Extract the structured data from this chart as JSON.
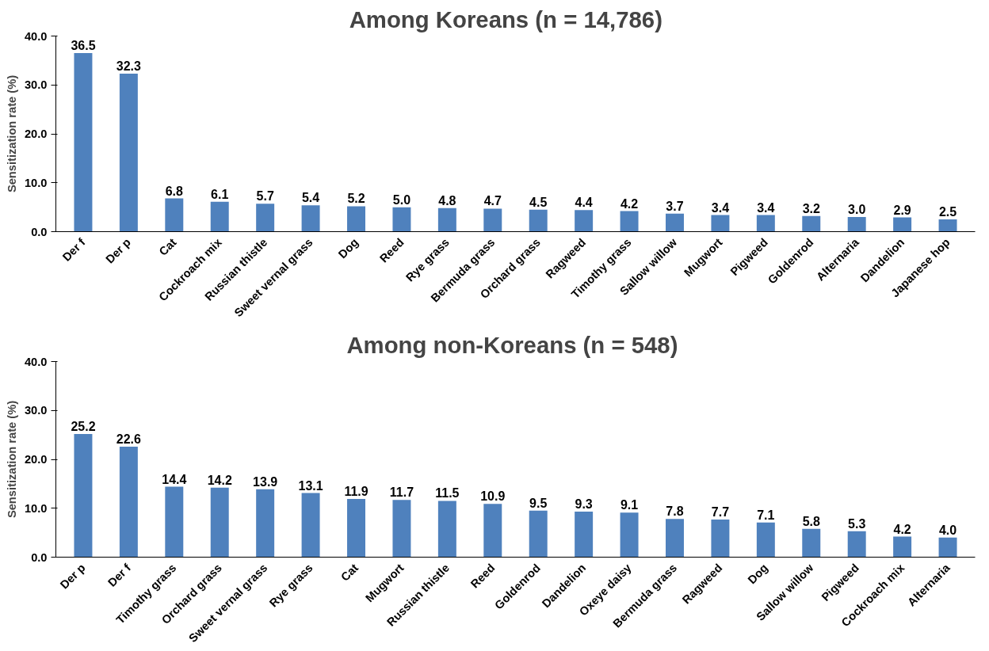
{
  "chart_data": [
    {
      "type": "bar",
      "title": "Among Koreans    (n = 14,786)",
      "ylabel": "Sensitization rate (%)",
      "categories": [
        "Der f",
        "Der p",
        "Cat",
        "Cockroach mix",
        "Russian thistle",
        "Sweet vernal grass",
        "Dog",
        "Reed",
        "Rye grass",
        "Bermuda grass",
        "Orchard grass",
        "Ragweed",
        "Timothy grass",
        "Sallow willow",
        "Mugwort",
        "Pigweed",
        "Goldenrod",
        "Alternaria",
        "Dandelion",
        "Japanese hop"
      ],
      "values": [
        36.5,
        32.3,
        6.8,
        6.1,
        5.7,
        5.4,
        5.2,
        5.0,
        4.8,
        4.7,
        4.5,
        4.4,
        4.2,
        3.7,
        3.4,
        3.4,
        3.2,
        3.0,
        2.9,
        2.5
      ],
      "value_labels": [
        "36.5",
        "32.3",
        "6.8",
        "6.1",
        "5.7",
        "5.4",
        "5.2",
        "5.0",
        "4.8",
        "4.7",
        "4.5",
        "4.4",
        "4.2",
        "3.7",
        "3.4",
        "3.4",
        "3.2",
        "3.0",
        "2.9",
        "2.5"
      ],
      "color": "#4f81bd",
      "ylim": [
        0,
        40
      ],
      "yticks": [
        {
          "value": 0,
          "label": "0.0"
        },
        {
          "value": 10,
          "label": "10.0"
        },
        {
          "value": 20,
          "label": "20.0"
        },
        {
          "value": 30,
          "label": "30.0"
        },
        {
          "value": 40,
          "label": "40.0"
        }
      ]
    },
    {
      "type": "bar",
      "title": "Among non-Koreans  (n = 548)",
      "ylabel": "Sensitization rate (%)",
      "categories": [
        "Der p",
        "Der f",
        "Timothy grass",
        "Orchard grass",
        "Sweet vernal grass",
        "Rye grass",
        "Cat",
        "Mugwort",
        "Russian thistle",
        "Reed",
        "Goldenrod",
        "Dandelion",
        "Oxeye daisy",
        "Bermuda grass",
        "Ragweed",
        "Dog",
        "Sallow willow",
        "Pigweed",
        "Cockroach mix",
        "Alternaria"
      ],
      "values": [
        25.2,
        22.6,
        14.4,
        14.2,
        13.9,
        13.1,
        11.9,
        11.7,
        11.5,
        10.9,
        9.5,
        9.3,
        9.1,
        7.8,
        7.7,
        7.1,
        5.8,
        5.3,
        4.2,
        4.0
      ],
      "value_labels": [
        "25.2",
        "22.6",
        "14.4",
        "14.2",
        "13.9",
        "13.1",
        "11.9",
        "11.7",
        "11.5",
        "10.9",
        "9.5",
        "9.3",
        "9.1",
        "7.8",
        "7.7",
        "7.1",
        "5.8",
        "5.3",
        "4.2",
        "4.0"
      ],
      "color": "#4f81bd",
      "ylim": [
        0,
        40
      ],
      "yticks": [
        {
          "value": 0,
          "label": "0.0"
        },
        {
          "value": 10,
          "label": "10.0"
        },
        {
          "value": 20,
          "label": "20.0"
        },
        {
          "value": 30,
          "label": "30.0"
        },
        {
          "value": 40,
          "label": "40.0"
        }
      ]
    }
  ]
}
